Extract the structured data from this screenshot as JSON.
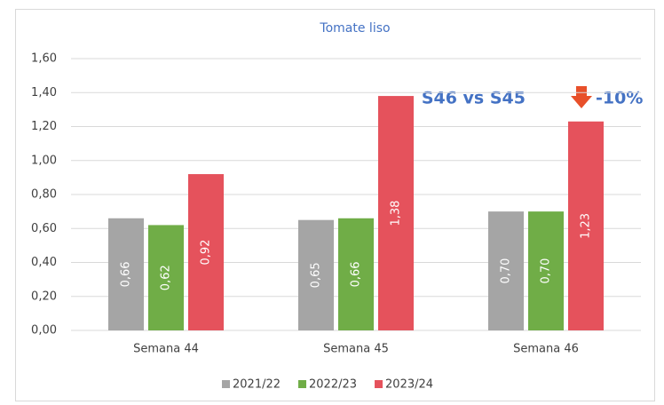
{
  "chart_data": {
    "type": "bar",
    "title": "Tomate liso",
    "categories": [
      "Semana 44",
      "Semana 45",
      "Semana 46"
    ],
    "series": [
      {
        "name": "2021/22",
        "color": "#a5a5a5",
        "values": [
          0.66,
          0.65,
          0.7
        ],
        "value_labels": [
          "0,66",
          "0,65",
          "0,70"
        ]
      },
      {
        "name": "2022/23",
        "color": "#70ad47",
        "values": [
          0.62,
          0.66,
          0.7
        ],
        "value_labels": [
          "0,62",
          "0,66",
          "0,70"
        ]
      },
      {
        "name": "2023/24",
        "color": "#e5525c",
        "values": [
          0.92,
          1.38,
          1.23
        ],
        "value_labels": [
          "0,92",
          "1,38",
          "1,23"
        ]
      }
    ],
    "ylim": [
      0,
      1.6
    ],
    "yticks": [
      {
        "value": 0,
        "label": "0,00"
      },
      {
        "value": 0.2,
        "label": "0,20"
      },
      {
        "value": 0.4,
        "label": "0,40"
      },
      {
        "value": 0.6,
        "label": "0,60"
      },
      {
        "value": 0.8,
        "label": "0,80"
      },
      {
        "value": 1.0,
        "label": "1,00"
      },
      {
        "value": 1.2,
        "label": "1,20"
      },
      {
        "value": 1.4,
        "label": "1,40"
      },
      {
        "value": 1.6,
        "label": "1,60"
      }
    ],
    "grid": true,
    "legend": "bottom",
    "annotation": {
      "left": "S46 vs S45",
      "right": "-10%"
    }
  }
}
